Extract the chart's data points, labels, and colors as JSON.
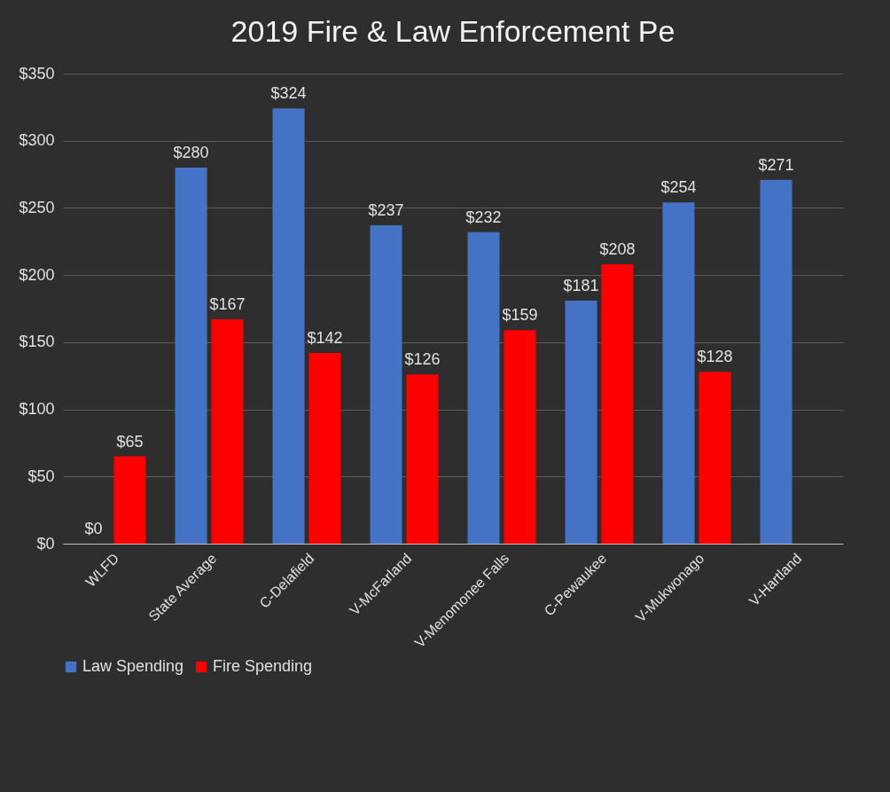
{
  "chart_data": {
    "type": "bar",
    "title": "2019 Fire & Law Enforcement Pe",
    "categories": [
      "WLFD",
      "State Average",
      "C-Delafield",
      "V-McFarland",
      "V-Menomonee Falls",
      "C-Pewaukee",
      "V-Mukwonago",
      "V-Hartland"
    ],
    "series": [
      {
        "name": "Law Spending",
        "color": "#4472c4",
        "values": [
          0,
          280,
          324,
          237,
          232,
          181,
          254,
          271
        ],
        "value_labels": [
          "$0",
          "$280",
          "$324",
          "$237",
          "$232",
          "$181",
          "$254",
          "$271"
        ]
      },
      {
        "name": "Fire Spending",
        "color": "#ff0000",
        "values": [
          65,
          167,
          142,
          126,
          159,
          208,
          128,
          null
        ],
        "value_labels": [
          "$65",
          "$167",
          "$142",
          "$126",
          "$159",
          "$208",
          "$128",
          null
        ]
      }
    ],
    "ylim": [
      0,
      350
    ],
    "yticks": [
      {
        "value": 0,
        "label": "$0"
      },
      {
        "value": 50,
        "label": "$50"
      },
      {
        "value": 100,
        "label": "$100"
      },
      {
        "value": 150,
        "label": "$150"
      },
      {
        "value": 200,
        "label": "$200"
      },
      {
        "value": 250,
        "label": "$250"
      },
      {
        "value": 300,
        "label": "$300"
      },
      {
        "value": 350,
        "label": "$350"
      }
    ],
    "grid": "y",
    "legend": "bottom"
  }
}
